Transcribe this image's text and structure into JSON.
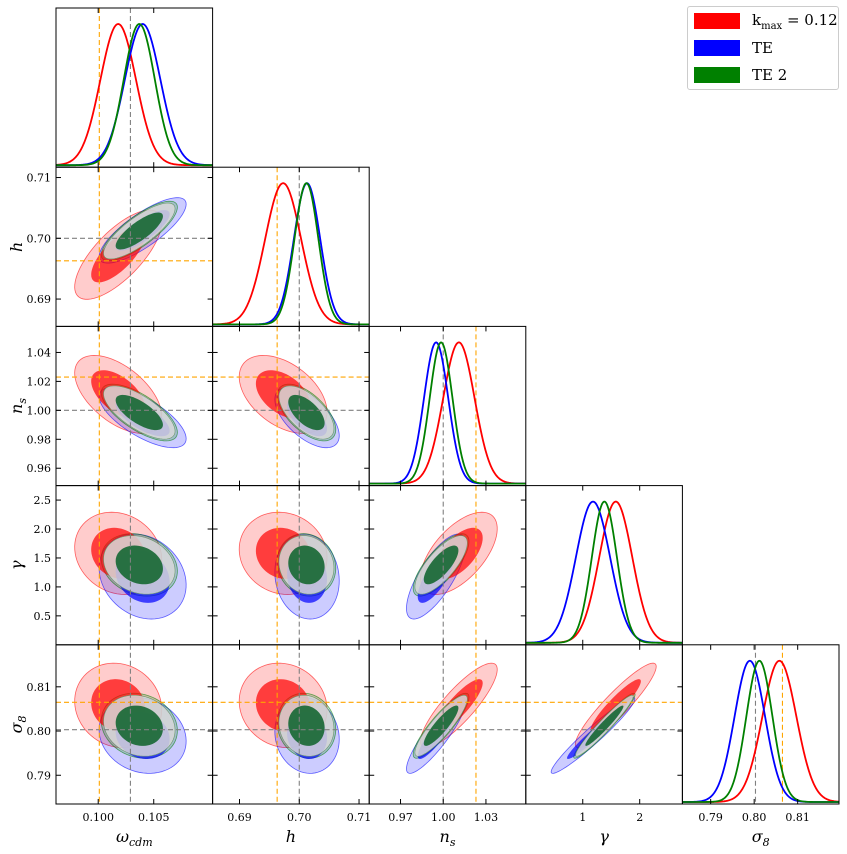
{
  "chart_data": {
    "type": "corner",
    "parameters": [
      {
        "id": "omega_cdm",
        "label": "ω_cdm",
        "range": [
          0.0962,
          0.1103
        ],
        "ticks": [
          0.1,
          0.105
        ],
        "tick_labels": [
          "0.100",
          "0.105"
        ],
        "fiducial": 0.1029
      },
      {
        "id": "h",
        "label": "h",
        "range": [
          0.6855,
          0.7117
        ],
        "ticks": [
          0.69,
          0.7,
          0.71
        ],
        "tick_labels": [
          "0.69",
          "0.70",
          "0.71"
        ],
        "fiducial": 0.7
      },
      {
        "id": "n_s",
        "label": "n_s",
        "range": [
          0.948,
          1.058
        ],
        "ticks": [
          0.96,
          0.98,
          1.0,
          1.02,
          1.04
        ],
        "tick_labels": [
          "0.96",
          "0.98",
          "1.00",
          "1.02",
          "1.04"
        ],
        "xticks": [
          0.97,
          1.0,
          1.03
        ],
        "xtick_labels": [
          "0.97",
          "1.00",
          "1.03"
        ],
        "fiducial": 1.0
      },
      {
        "id": "gamma",
        "label": "γ",
        "range": [
          0.0,
          2.75
        ],
        "ticks": [
          0.5,
          1.0,
          1.5,
          2.0,
          2.5
        ],
        "tick_labels": [
          "0.5",
          "1.0",
          "1.5",
          "2.0",
          "2.5"
        ],
        "xticks": [
          1,
          2
        ],
        "xtick_labels": [
          "1",
          "2"
        ],
        "fiducial": null
      },
      {
        "id": "sigma_8",
        "label": "σ_8",
        "range": [
          0.7835,
          0.8195
        ],
        "ticks": [
          0.79,
          0.8,
          0.81
        ],
        "tick_labels": [
          "0.79",
          "0.80",
          "0.81"
        ],
        "fiducial": 0.8003
      }
    ],
    "series": [
      {
        "name": "k_max = 0.12",
        "color": "#ff0000",
        "mean": [
          0.1018,
          0.6973,
          1.011,
          1.58,
          0.8058
        ],
        "sigma": [
          0.0016,
          0.003,
          0.011,
          0.29,
          0.0039
        ],
        "corr": [
          [
            1,
            0.72,
            -0.55,
            -0.15,
            -0.1
          ],
          [
            0.72,
            1,
            -0.45,
            -0.1,
            -0.1
          ],
          [
            -0.55,
            -0.45,
            1,
            0.6,
            0.85
          ],
          [
            -0.15,
            -0.1,
            0.6,
            1,
            0.92
          ],
          [
            -0.1,
            -0.1,
            0.85,
            0.92,
            1
          ]
        ]
      },
      {
        "name": "TE",
        "color": "#0000ff",
        "mean": [
          0.104,
          0.7013,
          0.995,
          1.18,
          0.799
        ],
        "sigma": [
          0.0016,
          0.0022,
          0.0085,
          0.3,
          0.0035
        ],
        "corr": [
          [
            1,
            0.8,
            -0.7,
            -0.2,
            -0.15
          ],
          [
            0.8,
            1,
            -0.6,
            -0.1,
            -0.1
          ],
          [
            -0.7,
            -0.6,
            1,
            0.75,
            0.88
          ],
          [
            -0.2,
            -0.1,
            0.75,
            1,
            0.96
          ],
          [
            -0.15,
            -0.1,
            0.88,
            0.96,
            1
          ]
        ]
      },
      {
        "name": "TE 2",
        "color": "#008000",
        "mean": [
          0.1037,
          0.7012,
          0.9985,
          1.38,
          0.8012
        ],
        "sigma": [
          0.0014,
          0.002,
          0.008,
          0.22,
          0.003
        ],
        "corr": [
          [
            1,
            0.8,
            -0.7,
            -0.2,
            -0.15
          ],
          [
            0.8,
            1,
            -0.6,
            -0.1,
            -0.1
          ],
          [
            -0.7,
            -0.6,
            1,
            0.75,
            0.88
          ],
          [
            -0.2,
            -0.1,
            0.75,
            1,
            0.96
          ],
          [
            -0.15,
            -0.1,
            0.88,
            0.96,
            1
          ]
        ]
      }
    ],
    "reference_lines": {
      "fiducial_color": "#808080",
      "kmax_color": "#ffa500",
      "kmax_values": [
        0.1001,
        0.6963,
        1.023,
        null,
        0.8065
      ]
    },
    "legend": {
      "position": "top-right",
      "entries": [
        "k_max = 0.12",
        "TE",
        "TE 2"
      ]
    },
    "legend_text": {
      "kmax_prefix": "k",
      "kmax_sub": "max",
      "kmax_suffix": " = 0.12",
      "te": "TE",
      "te2": "TE 2"
    }
  }
}
